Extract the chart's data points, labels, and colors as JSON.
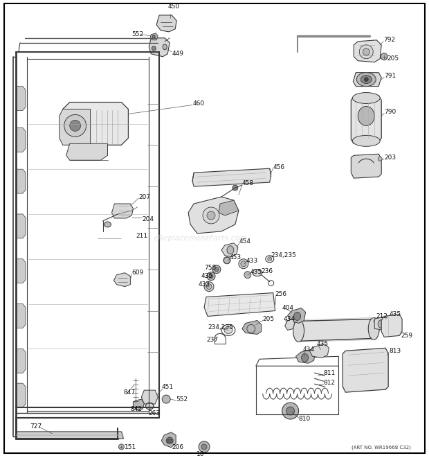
{
  "background_color": "#ffffff",
  "border_color": "#000000",
  "watermark_text": "eReplacementParts.com",
  "art_no_text": "(ART NO. WR19668 C32)",
  "fig_width": 6.2,
  "fig_height": 6.61,
  "dpi": 100,
  "line_color": "#3a3a3a",
  "fill_light": "#d8d8d8",
  "fill_mid": "#b8b8b8",
  "fill_dark": "#888888"
}
